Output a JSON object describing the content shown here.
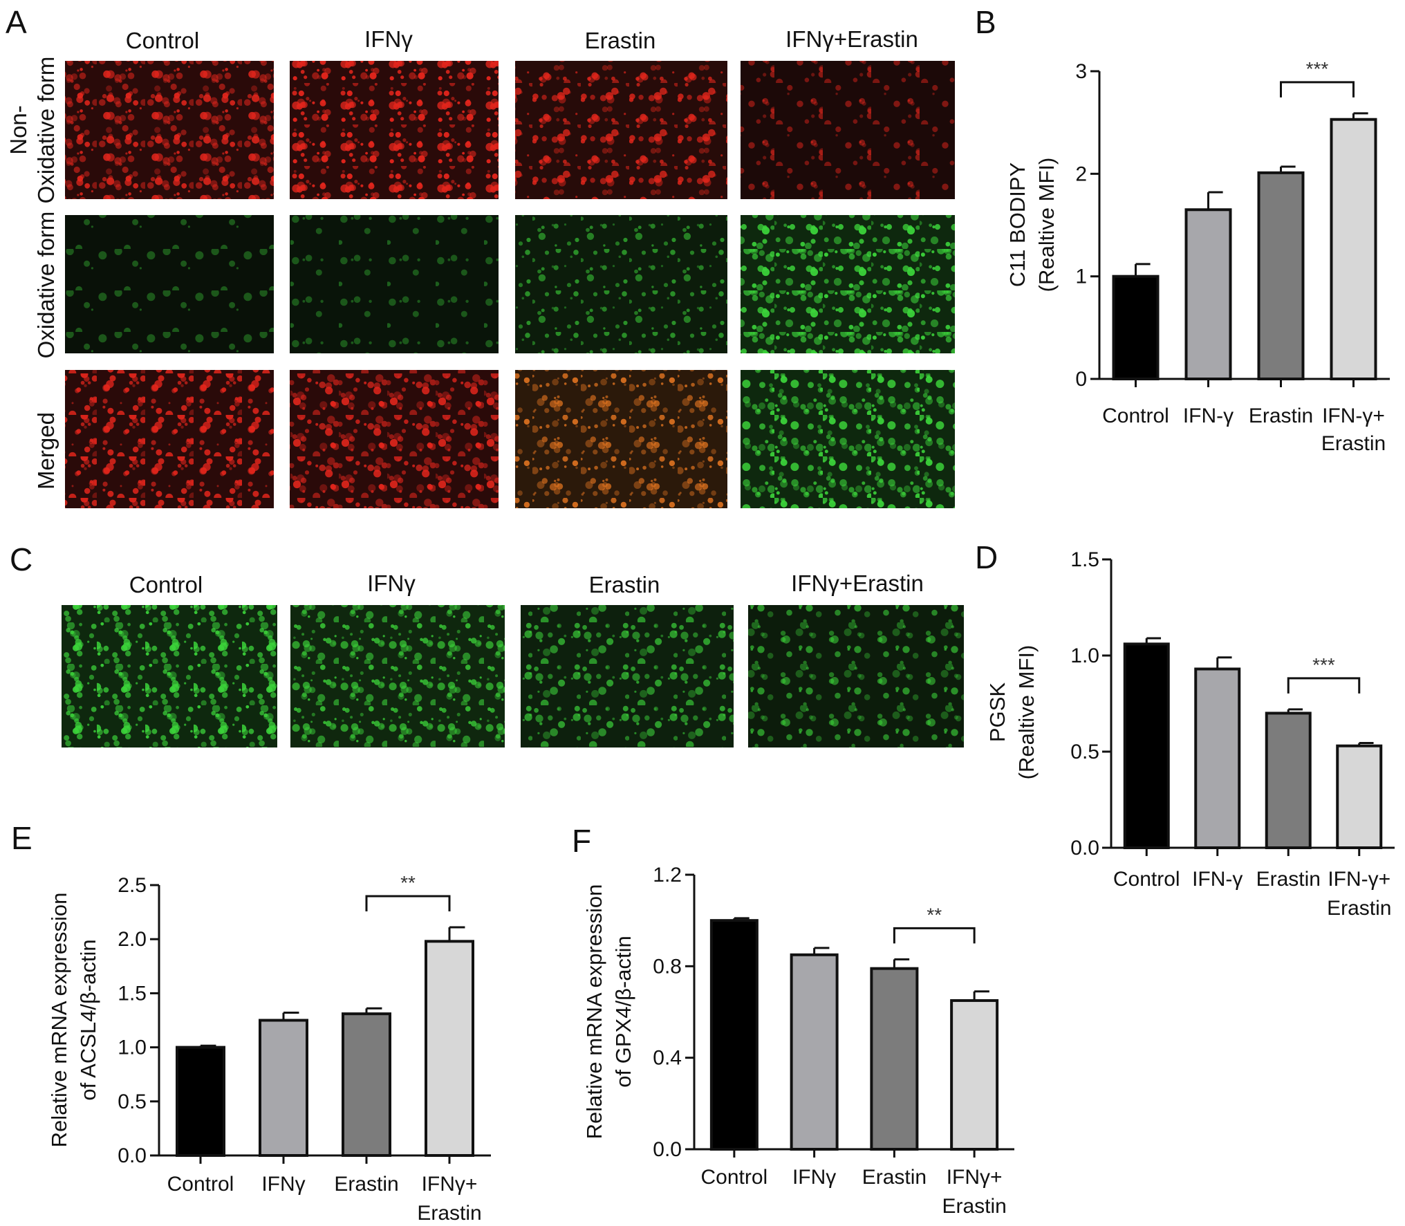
{
  "panels": {
    "A": {
      "label": "A",
      "columns": [
        "Control",
        "IFNγ",
        "Erastin",
        "IFNγ+Erastin"
      ],
      "rows": [
        {
          "label_lines": [
            "Non-",
            "Oxidative form"
          ],
          "tiles": [
            {
              "channel": "red",
              "intensity": 0.9
            },
            {
              "channel": "red",
              "intensity": 0.95
            },
            {
              "channel": "red",
              "intensity": 0.75
            },
            {
              "channel": "red",
              "intensity": 0.35
            }
          ]
        },
        {
          "label_lines": [
            "Oxidative form"
          ],
          "tiles": [
            {
              "channel": "green",
              "intensity": 0.04
            },
            {
              "channel": "green",
              "intensity": 0.07
            },
            {
              "channel": "green",
              "intensity": 0.45
            },
            {
              "channel": "green",
              "intensity": 0.95
            }
          ]
        },
        {
          "label_lines": [
            "Merged"
          ],
          "tiles": [
            {
              "channel": "red",
              "intensity": 0.9
            },
            {
              "channel": "red",
              "intensity": 0.9
            },
            {
              "channel": "orange",
              "intensity": 0.8
            },
            {
              "channel": "green",
              "intensity": 0.95
            }
          ]
        }
      ]
    },
    "C": {
      "label": "C",
      "columns": [
        "Control",
        "IFNγ",
        "Erastin",
        "IFNγ+Erastin"
      ],
      "tiles": [
        {
          "channel": "green",
          "intensity": 0.9
        },
        {
          "channel": "green",
          "intensity": 0.8
        },
        {
          "channel": "green",
          "intensity": 0.6
        },
        {
          "channel": "green",
          "intensity": 0.45
        }
      ]
    }
  },
  "colors": {
    "red": "#e4261c",
    "green": "#3cd43a",
    "orange": "#ee7a22",
    "bar_colors": [
      "#000000",
      "#a7a7ab",
      "#7c7c7c",
      "#d7d7d7"
    ]
  },
  "chart_data": [
    {
      "panel": "B",
      "type": "bar",
      "categories": [
        [
          "Control"
        ],
        [
          "IFN-γ"
        ],
        [
          "Erastin"
        ],
        [
          "IFN-γ+",
          "Erastin"
        ]
      ],
      "values": [
        1.0,
        1.65,
        2.01,
        2.53
      ],
      "errors": [
        0.12,
        0.17,
        0.06,
        0.06
      ],
      "ylabel_lines": [
        "C11 BODIPY",
        "(Realtive MFI)"
      ],
      "ylim": [
        0,
        3
      ],
      "yticks": [
        "0",
        "1",
        "2",
        "3"
      ],
      "significance": {
        "from": 2,
        "to": 3,
        "label": "***"
      }
    },
    {
      "panel": "D",
      "type": "bar",
      "categories": [
        [
          "Control"
        ],
        [
          "IFN-γ"
        ],
        [
          "Erastin"
        ],
        [
          "IFN-γ+",
          "Erastin"
        ]
      ],
      "values": [
        1.06,
        0.93,
        0.7,
        0.53
      ],
      "errors": [
        0.03,
        0.06,
        0.02,
        0.015
      ],
      "ylabel_lines": [
        "PGSK",
        "(Realtive MFI)"
      ],
      "ylim": [
        0,
        1.5
      ],
      "yticks": [
        "0.0",
        "0.5",
        "1.0",
        "1.5"
      ],
      "significance": {
        "from": 2,
        "to": 3,
        "label": "***"
      }
    },
    {
      "panel": "E",
      "type": "bar",
      "categories": [
        [
          "Control"
        ],
        [
          "IFNγ"
        ],
        [
          "Erastin"
        ],
        [
          "IFNγ+",
          "Erastin"
        ]
      ],
      "values": [
        1.0,
        1.25,
        1.31,
        1.98
      ],
      "errors": [
        0.015,
        0.07,
        0.05,
        0.13
      ],
      "ylabel_lines": [
        "Relative mRNA expression",
        "of ACSL4/β-actin"
      ],
      "ylim": [
        0,
        2.5
      ],
      "yticks": [
        "0.0",
        "0.5",
        "1.0",
        "1.5",
        "2.0",
        "2.5"
      ],
      "significance": {
        "from": 2,
        "to": 3,
        "label": "**"
      }
    },
    {
      "panel": "F",
      "type": "bar",
      "categories": [
        [
          "Control"
        ],
        [
          "IFNγ"
        ],
        [
          "Erastin"
        ],
        [
          "IFNγ+",
          "Erastin"
        ]
      ],
      "values": [
        1.0,
        0.85,
        0.79,
        0.65
      ],
      "errors": [
        0.01,
        0.03,
        0.04,
        0.04
      ],
      "ylabel_lines": [
        "Relative mRNA expression",
        "of GPX4/β-actin"
      ],
      "ylim": [
        0,
        1.2
      ],
      "yticks": [
        "0.0",
        "0.4",
        "0.8",
        "1.2"
      ],
      "significance": {
        "from": 2,
        "to": 3,
        "label": "**"
      }
    }
  ]
}
